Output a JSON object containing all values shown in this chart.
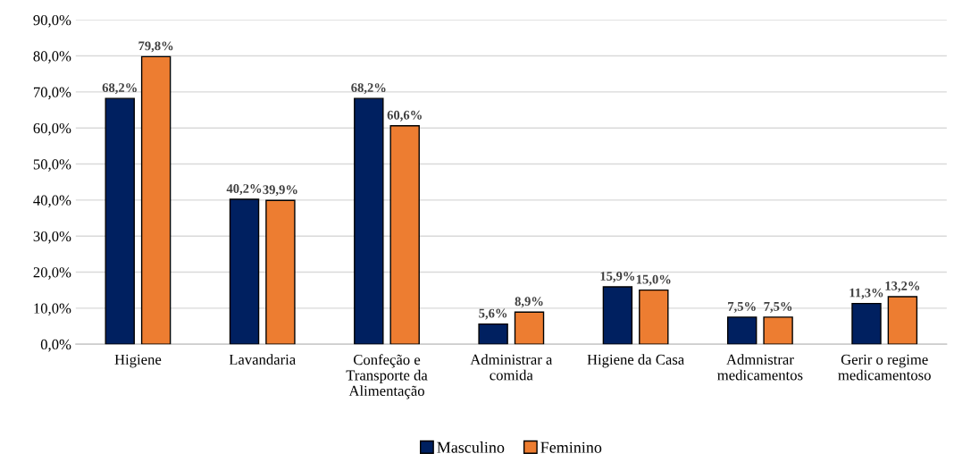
{
  "chart_data": {
    "type": "bar",
    "categories": [
      "Higiene",
      "Lavandaria",
      "Confeção e\nTransporte da\nAlimentação",
      "Administrar a\ncomida",
      "Higiene da Casa",
      "Admnistrar\nmedicamentos",
      "Gerir o regime\nmedicamentoso"
    ],
    "series": [
      {
        "name": "Masculino",
        "color": "#002060",
        "values": [
          68.2,
          40.2,
          68.2,
          5.6,
          15.9,
          7.5,
          11.3
        ],
        "value_labels": [
          "68,2%",
          "40,2%",
          "68,2%",
          "5,6%",
          "15,9%",
          "7,5%",
          "11,3%"
        ]
      },
      {
        "name": "Feminino",
        "color": "#ed7d31",
        "values": [
          79.8,
          39.9,
          60.6,
          8.9,
          15.0,
          7.5,
          13.2
        ],
        "value_labels": [
          "79,8%",
          "39,9%",
          "60,6%",
          "8,9%",
          "15,0%",
          "7,5%",
          "13,2%"
        ]
      }
    ],
    "ylim": [
      0,
      90
    ],
    "yticks": [
      {
        "value": 0,
        "label": "0,0%"
      },
      {
        "value": 10,
        "label": "10,0%"
      },
      {
        "value": 20,
        "label": "20,0%"
      },
      {
        "value": 30,
        "label": "30,0%"
      },
      {
        "value": 40,
        "label": "40,0%"
      },
      {
        "value": 50,
        "label": "50,0%"
      },
      {
        "value": 60,
        "label": "60,0%"
      },
      {
        "value": 70,
        "label": "70,0%"
      },
      {
        "value": 80,
        "label": "80,0%"
      },
      {
        "value": 90,
        "label": "90,0%"
      }
    ],
    "grid": "y",
    "legend": "bottom"
  }
}
